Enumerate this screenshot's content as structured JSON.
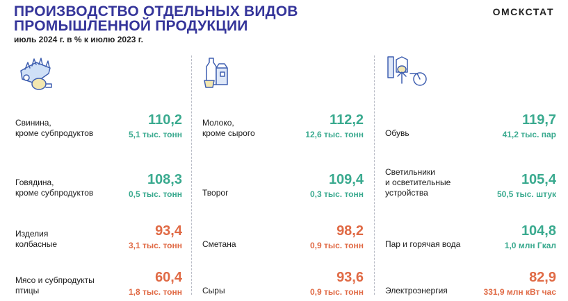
{
  "header": {
    "title_line1": "ПРОИЗВОДСТВО ОТДЕЛЬНЫХ ВИДОВ",
    "title_line2": "ПРОМЫШЛЕННОЙ ПРОДУКЦИИ",
    "subtitle": "июль 2024 г. в % к июлю 2023 г.",
    "brand": "ОМСКСТАТ"
  },
  "colors": {
    "increase": "#3aaa8f",
    "decrease": "#e06a45",
    "title": "#35359a"
  },
  "columns": [
    {
      "icon": "meat-products-icon",
      "items": [
        {
          "label_line1": "Свинина,",
          "label_line2": "кроме субпродуктов",
          "label_line3": "",
          "index": "110,2",
          "volume": "5,1 тыс. тонн",
          "trend": "up"
        },
        {
          "label_line1": "Говядина,",
          "label_line2": "кроме субпродуктов",
          "label_line3": "",
          "index": "108,3",
          "volume": "0,5 тыс. тонн",
          "trend": "up"
        },
        {
          "label_line1": "Изделия",
          "label_line2": "колбасные",
          "label_line3": "",
          "index": "93,4",
          "volume": "3,1 тыс. тонн",
          "trend": "down"
        },
        {
          "label_line1": "Мясо и субпродукты",
          "label_line2": "птицы",
          "label_line3": "",
          "index": "60,4",
          "volume": "1,8 тыс. тонн",
          "trend": "down"
        }
      ]
    },
    {
      "icon": "dairy-products-icon",
      "items": [
        {
          "label_line1": "Молоко,",
          "label_line2": "кроме сырого",
          "label_line3": "",
          "index": "112,2",
          "volume": "12,6 тыс. тонн",
          "trend": "up"
        },
        {
          "label_line1": "Творог",
          "label_line2": "",
          "label_line3": "",
          "index": "109,4",
          "volume": "0,3 тыс. тонн",
          "trend": "up"
        },
        {
          "label_line1": "Сметана",
          "label_line2": "",
          "label_line3": "",
          "index": "98,2",
          "volume": "0,9 тыс. тонн",
          "trend": "down"
        },
        {
          "label_line1": "Сыры",
          "label_line2": "",
          "label_line3": "",
          "index": "93,6",
          "volume": "0,9 тыс. тонн",
          "trend": "down"
        }
      ]
    },
    {
      "icon": "industrial-goods-icon",
      "items": [
        {
          "label_line1": "Обувь",
          "label_line2": "",
          "label_line3": "",
          "index": "119,7",
          "volume": "41,2 тыс. пар",
          "trend": "up"
        },
        {
          "label_line1": "Светильники",
          "label_line2": "и осветительные",
          "label_line3": "устройства",
          "index": "105,4",
          "volume": "50,5 тыс. штук",
          "trend": "up"
        },
        {
          "label_line1": "Пар и горячая вода",
          "label_line2": "",
          "label_line3": "",
          "index": "104,8",
          "volume": "1,0 млн Гкал",
          "trend": "up"
        },
        {
          "label_line1": "Электроэнергия",
          "label_line2": "",
          "label_line3": "",
          "index": "82,9",
          "volume": "331,9 млн кВт час",
          "trend": "down"
        }
      ]
    }
  ]
}
